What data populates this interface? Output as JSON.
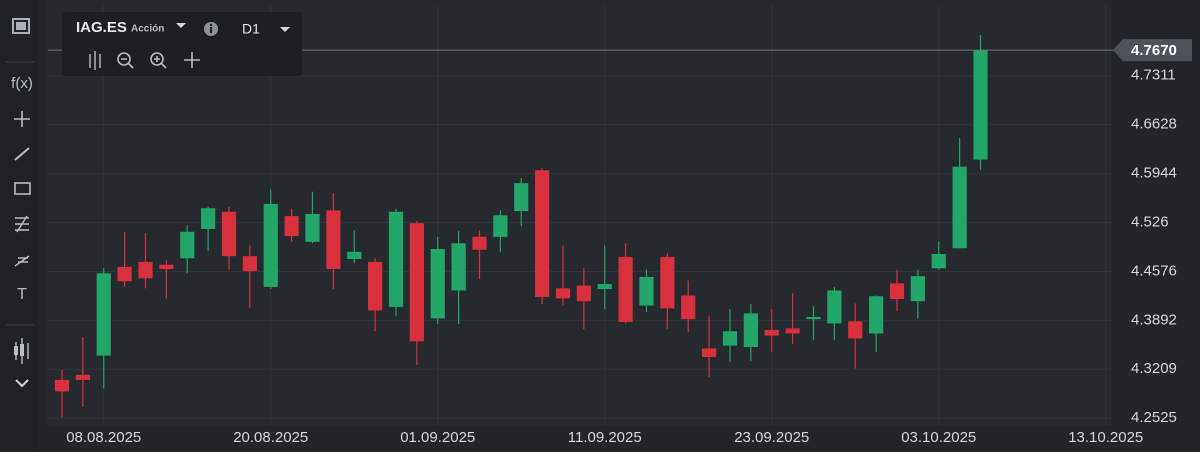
{
  "header": {
    "symbol": "IAG.ES",
    "kind": "Acción",
    "timeframe": "D1"
  },
  "toolbar": {
    "labels": [
      "f(x)",
      "T"
    ]
  },
  "chart_data": {
    "type": "candlestick",
    "x": [
      0,
      1,
      2,
      3,
      4,
      5,
      6,
      7,
      8,
      9,
      10,
      11,
      12,
      13,
      14,
      15,
      16,
      17,
      18,
      19,
      20,
      21,
      22,
      23,
      24,
      25,
      26,
      27,
      28,
      29,
      30,
      31,
      32,
      33,
      34,
      35,
      36,
      37,
      38,
      39,
      40,
      41,
      42,
      43,
      44
    ],
    "open": [
      4.306,
      4.313,
      4.34,
      4.464,
      4.471,
      4.467,
      4.476,
      4.517,
      4.541,
      4.479,
      4.436,
      4.535,
      4.499,
      4.543,
      4.475,
      4.471,
      4.408,
      4.525,
      4.392,
      4.431,
      4.506,
      4.506,
      4.542,
      4.599,
      4.434,
      4.438,
      4.433,
      4.478,
      4.41,
      4.478,
      4.424,
      4.35,
      4.354,
      4.352,
      4.376,
      4.378,
      4.391,
      4.385,
      4.388,
      4.371,
      4.441,
      4.416,
      4.462,
      4.49,
      4.614
    ],
    "high": [
      4.32,
      4.366,
      4.462,
      4.513,
      4.511,
      4.474,
      4.522,
      4.548,
      4.548,
      4.494,
      4.572,
      4.545,
      4.569,
      4.567,
      4.515,
      4.476,
      4.545,
      4.528,
      4.506,
      4.514,
      4.515,
      4.543,
      4.588,
      4.602,
      4.494,
      4.462,
      4.494,
      4.497,
      4.46,
      4.483,
      4.445,
      4.396,
      4.405,
      4.412,
      4.405,
      4.427,
      4.409,
      4.436,
      4.413,
      4.424,
      4.46,
      4.46,
      4.499,
      4.644,
      4.788
    ],
    "low": [
      4.254,
      4.268,
      4.294,
      4.436,
      4.434,
      4.42,
      4.455,
      4.486,
      4.46,
      4.406,
      4.433,
      4.499,
      4.497,
      4.433,
      4.469,
      4.374,
      4.395,
      4.327,
      4.384,
      4.384,
      4.447,
      4.485,
      4.521,
      4.412,
      4.41,
      4.377,
      4.405,
      4.385,
      4.401,
      4.377,
      4.373,
      4.31,
      4.331,
      4.332,
      4.345,
      4.356,
      4.362,
      4.362,
      4.322,
      4.345,
      4.402,
      4.392,
      4.46,
      4.49,
      4.6
    ],
    "close": [
      4.29,
      4.306,
      4.455,
      4.444,
      4.448,
      4.461,
      4.513,
      4.546,
      4.479,
      4.458,
      4.552,
      4.507,
      4.538,
      4.461,
      4.485,
      4.403,
      4.541,
      4.36,
      4.489,
      4.497,
      4.488,
      4.536,
      4.581,
      4.422,
      4.42,
      4.416,
      4.44,
      4.387,
      4.45,
      4.406,
      4.391,
      4.338,
      4.374,
      4.399,
      4.368,
      4.371,
      4.394,
      4.431,
      4.364,
      4.423,
      4.419,
      4.451,
      4.482,
      4.604,
      4.767
    ],
    "up_color": "#22a66a",
    "down_color": "#d8303d",
    "xlim": [
      -0.67,
      50.3
    ],
    "xticks": [
      {
        "value": 2,
        "label": "08.08.2025"
      },
      {
        "value": 10,
        "label": "20.08.2025"
      },
      {
        "value": 18,
        "label": "01.09.2025"
      },
      {
        "value": 26,
        "label": "11.09.2025"
      },
      {
        "value": 34,
        "label": "23.09.2025"
      },
      {
        "value": 42,
        "label": "03.10.2025"
      },
      {
        "value": 50,
        "label": "13.10.2025"
      }
    ],
    "ylim": [
      4.243,
      4.83
    ],
    "yticks": [
      4.2525,
      4.3209,
      4.3892,
      4.4576,
      4.526,
      4.5944,
      4.6628,
      4.7311
    ],
    "last_price": {
      "value": 4.767,
      "label": "4.7670"
    },
    "grid": true
  }
}
